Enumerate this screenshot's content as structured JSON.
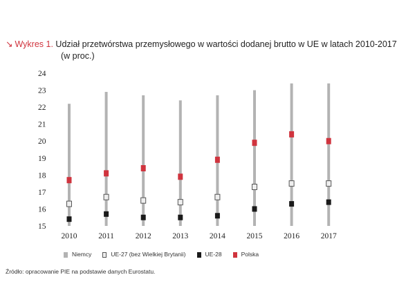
{
  "title": {
    "arrow": "↘",
    "prefix": "Wykres 1.",
    "line1": "Udział przetwórstwa przemysłowego w wartości dodanej brutto w UE w latach 2010-2017",
    "line2": "(w proc.)"
  },
  "source": "Źródło: opracowanie PIE na podstawie danych Eurostatu.",
  "colors": {
    "niemcy": "#b3b3b3",
    "ue27": "#eeeeee",
    "ue27_border": "#555555",
    "ue28": "#1a1a1a",
    "polska": "#d0343e"
  },
  "chart_data": {
    "type": "scatter",
    "categories": [
      "2010",
      "2011",
      "2012",
      "2013",
      "2014",
      "2015",
      "2016",
      "2017"
    ],
    "ylim": [
      15,
      24
    ],
    "yticks": [
      "15",
      "16",
      "17",
      "18",
      "19",
      "20",
      "21",
      "22",
      "23",
      "24"
    ],
    "grid": false,
    "legend_position": "bottom",
    "series": [
      {
        "name": "Niemcy",
        "marker": "bar",
        "values": [
          22.2,
          22.9,
          22.7,
          22.4,
          22.7,
          23.0,
          23.4,
          23.4
        ]
      },
      {
        "name": "UE-27 (bez Wielkiej Brytanii)",
        "marker": "square-open",
        "values": [
          16.3,
          16.7,
          16.5,
          16.4,
          16.7,
          17.3,
          17.5,
          17.5
        ]
      },
      {
        "name": "UE-28",
        "marker": "square-filled",
        "values": [
          15.4,
          15.7,
          15.5,
          15.5,
          15.6,
          16.0,
          16.3,
          16.4
        ]
      },
      {
        "name": "Polska",
        "marker": "square-red",
        "values": [
          17.7,
          18.1,
          18.4,
          17.9,
          18.9,
          19.9,
          20.4,
          20.0
        ]
      }
    ]
  }
}
